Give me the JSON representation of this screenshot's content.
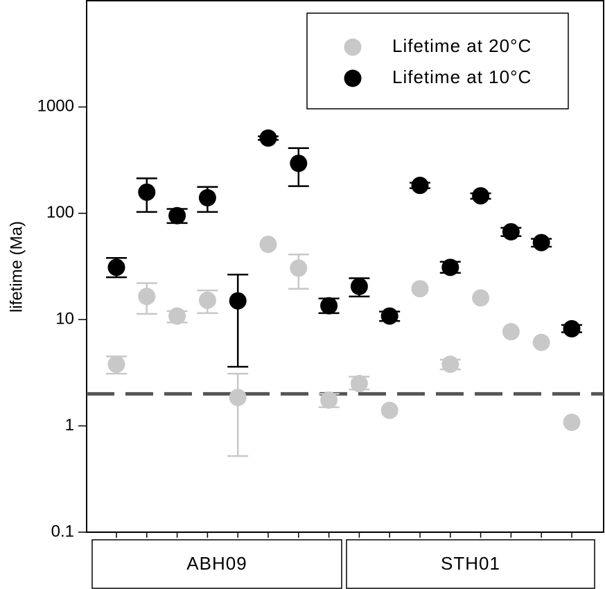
{
  "chart_data": {
    "type": "scatter",
    "ylabel": "lifetime (Ma)",
    "yscale": "log",
    "ylim": [
      0.1,
      10000
    ],
    "yticks": [
      "0.1",
      "1",
      "10",
      "100",
      "1000"
    ],
    "reference_line": {
      "y": 2,
      "style": "dashed",
      "color": "#555555"
    },
    "legend": {
      "position": "top-right",
      "entries": [
        "Lifetime at 20°C",
        "Lifetime at 10°C"
      ]
    },
    "groups": [
      {
        "label": "ABH09",
        "samples": 8
      },
      {
        "label": "STH01",
        "samples": 8
      }
    ],
    "series": [
      {
        "name": "Lifetime at 20°C",
        "color": "#c8c8c8",
        "x": [
          1,
          2,
          3,
          4,
          5,
          6,
          7,
          8,
          9,
          10,
          11,
          12,
          13,
          14,
          15,
          16
        ],
        "values": [
          3.8,
          16.5,
          10.8,
          15.2,
          1.85,
          51,
          30.5,
          1.75,
          2.5,
          1.4,
          19.5,
          3.8,
          16,
          7.7,
          6.1,
          1.08
        ],
        "err_low": [
          3.1,
          11.3,
          9.4,
          11.5,
          0.52,
          null,
          19.5,
          1.5,
          2.2,
          null,
          null,
          3.4,
          null,
          null,
          null,
          null
        ],
        "err_high": [
          4.5,
          22,
          12,
          18.8,
          3.1,
          null,
          41,
          2.0,
          2.9,
          null,
          null,
          4.2,
          null,
          null,
          null,
          null
        ]
      },
      {
        "name": "Lifetime at 10°C",
        "color": "#000000",
        "x": [
          1,
          2,
          3,
          4,
          5,
          6,
          7,
          8,
          9,
          10,
          11,
          12,
          13,
          14,
          15,
          16
        ],
        "values": [
          31,
          158,
          95,
          140,
          15,
          510,
          295,
          13.5,
          20.5,
          10.8,
          183,
          31,
          146,
          67,
          53,
          8.2
        ],
        "err_low": [
          25,
          103,
          81,
          103,
          3.6,
          490,
          180,
          11.5,
          16.5,
          9.7,
          172,
          27.5,
          137,
          61,
          48.5,
          7.6
        ],
        "err_high": [
          38,
          213,
          110,
          177,
          26.5,
          530,
          410,
          15.8,
          24.5,
          11.9,
          194,
          35,
          154,
          73,
          57.5,
          8.9
        ]
      }
    ]
  }
}
